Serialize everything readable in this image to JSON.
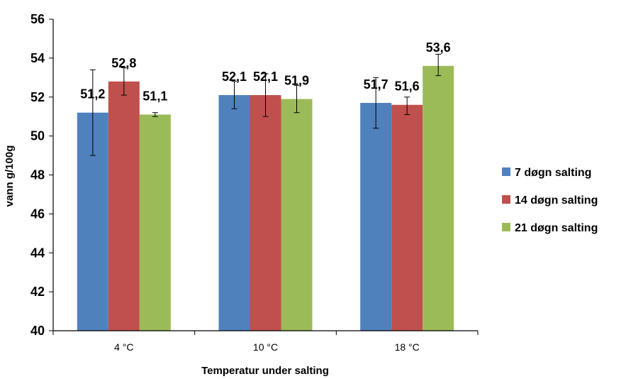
{
  "chart_data": {
    "type": "bar",
    "title": "",
    "xlabel": "Temperatur under salting",
    "ylabel": "vann g/100g",
    "ylim": [
      40,
      56
    ],
    "yticks": [
      "40",
      "42",
      "44",
      "46",
      "48",
      "50",
      "52",
      "54",
      "56"
    ],
    "categories": [
      "4 °C",
      "10 °C",
      "18 °C"
    ],
    "series": [
      {
        "name": "7 døgn salting",
        "color": "#4F81BD",
        "values": [
          51.2,
          52.1,
          51.7
        ],
        "labels": [
          "51,2",
          "52,1",
          "51,7"
        ],
        "error_low": [
          49.0,
          51.4,
          50.4
        ],
        "error_high": [
          53.4,
          52.8,
          53.0
        ]
      },
      {
        "name": "14 døgn salting",
        "color": "#C0504D",
        "values": [
          52.8,
          52.1,
          51.6
        ],
        "labels": [
          "52,8",
          "52,1",
          "51,6"
        ],
        "error_low": [
          52.1,
          51.0,
          51.1
        ],
        "error_high": [
          53.5,
          53.2,
          52.0
        ]
      },
      {
        "name": "21 døgn salting",
        "color": "#9BBB59",
        "values": [
          51.1,
          51.9,
          53.6
        ],
        "labels": [
          "51,1",
          "51,9",
          "53,6"
        ],
        "error_low": [
          51.0,
          51.2,
          53.1
        ],
        "error_high": [
          51.2,
          52.6,
          54.2
        ]
      }
    ],
    "grid": false,
    "legend_position": "right"
  }
}
